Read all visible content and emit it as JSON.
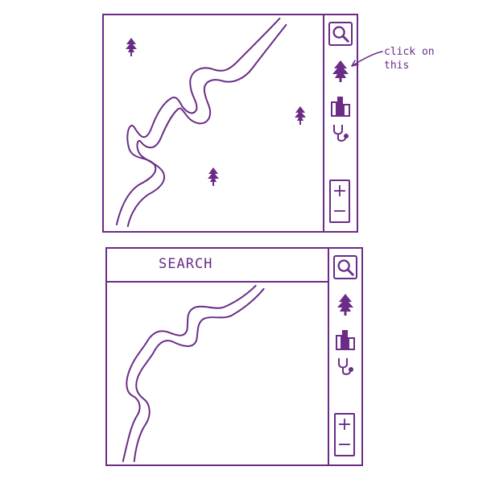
{
  "colors": {
    "ink": "#6a2c86",
    "background": "#ffffff"
  },
  "annotation": {
    "text": "click on\nthis"
  },
  "screens": [
    {
      "id": "before",
      "search_bar_visible": false,
      "toolbar": {
        "buttons": [
          {
            "icon": "magnifier-icon"
          },
          {
            "icon": "trees-icon"
          },
          {
            "icon": "city-buildings-icon"
          },
          {
            "icon": "stethoscope-icon"
          }
        ],
        "zoom_in_label": "+",
        "zoom_out_label": "−"
      },
      "markers": [
        {
          "icon": "tree-marker-icon"
        },
        {
          "icon": "tree-marker-icon"
        },
        {
          "icon": "tree-marker-icon"
        }
      ]
    },
    {
      "id": "after",
      "search_bar_visible": true,
      "search_label": "SEARCH",
      "toolbar": {
        "buttons": [
          {
            "icon": "magnifier-icon"
          },
          {
            "icon": "trees-icon"
          },
          {
            "icon": "city-buildings-icon"
          },
          {
            "icon": "stethoscope-icon"
          }
        ],
        "zoom_in_label": "+",
        "zoom_out_label": "−"
      },
      "markers": []
    }
  ]
}
